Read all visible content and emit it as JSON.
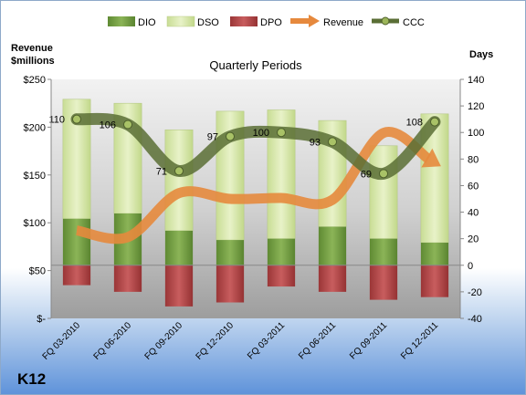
{
  "chart_data": {
    "type": "bar",
    "title": "Quarterly Periods",
    "company": "K12",
    "left_axis": {
      "label_line1": "Revenue",
      "label_line2": "$millions",
      "ylim": [
        0,
        250
      ],
      "ticks": [
        0,
        50,
        100,
        150,
        200,
        250
      ],
      "tick_labels": [
        "$-",
        "$50",
        "$100",
        "$150",
        "$200",
        "$250"
      ]
    },
    "right_axis": {
      "label": "Days",
      "ylim": [
        -40,
        140
      ],
      "ticks": [
        -40,
        -20,
        0,
        20,
        40,
        60,
        80,
        100,
        120,
        140
      ],
      "tick_labels": [
        "-40",
        "-20",
        "0",
        "20",
        "40",
        "60",
        "80",
        "100",
        "120",
        "140"
      ]
    },
    "categories": [
      "FQ 03-2010",
      "FQ 06-2010",
      "FQ 09-2010",
      "FQ 12-2010",
      "FQ 03-2011",
      "FQ 06-2011",
      "FQ 09-2011",
      "FQ 12-2011"
    ],
    "series": [
      {
        "name": "DIO",
        "axis": "right",
        "type": "stacked-bar",
        "color": "#6e9a3e",
        "values": [
          35,
          39,
          26,
          19,
          20,
          29,
          20,
          17
        ]
      },
      {
        "name": "DSO",
        "axis": "right",
        "type": "stacked-bar",
        "color": "#d5e6a6",
        "values": [
          90,
          83,
          76,
          97,
          97,
          80,
          70,
          97
        ]
      },
      {
        "name": "DPO",
        "axis": "right",
        "type": "negative-bar",
        "color": "#b7494a",
        "values": [
          -15,
          -20,
          -31,
          -28,
          -16,
          -20,
          -26,
          -24
        ]
      },
      {
        "name": "Revenue",
        "axis": "left",
        "type": "line",
        "color": "#e6893d",
        "values": [
          92,
          85,
          131,
          125,
          126,
          124,
          194,
          163
        ]
      },
      {
        "name": "CCC",
        "axis": "right",
        "type": "line",
        "color": "#5a6e35",
        "values": [
          110,
          106,
          71,
          97,
          100,
          93,
          69,
          108
        ],
        "labels": [
          "110",
          "106",
          "71",
          "97",
          "100",
          "93",
          "69",
          "108"
        ]
      }
    ],
    "legend": {
      "placement": "top"
    },
    "grid": false
  }
}
